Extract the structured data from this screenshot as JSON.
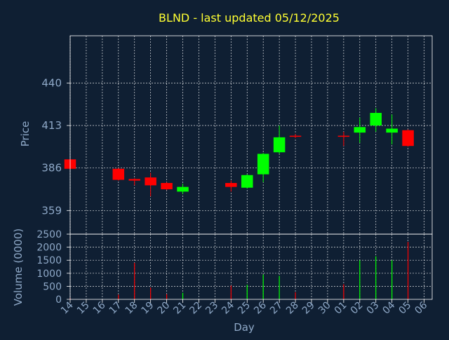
{
  "chart_data": {
    "type": "candlestick",
    "title": "BLND - last updated 05/12/2025",
    "xlabel": "Day",
    "ylabel": "Price",
    "volume_label": "Volume (0000)",
    "grid": true,
    "x_ticks": [
      "14",
      "15",
      "16",
      "17",
      "18",
      "19",
      "20",
      "21",
      "22",
      "23",
      "24",
      "25",
      "26",
      "27",
      "28",
      "29",
      "30",
      "01",
      "02",
      "03",
      "04",
      "05",
      "06"
    ],
    "y_ticks": [
      359,
      386,
      413,
      440
    ],
    "ylim": [
      344,
      470
    ],
    "volume_ticks": [
      0,
      500,
      1000,
      1500,
      2000,
      2500
    ],
    "volume_ylim": [
      0,
      2500
    ],
    "up_color": "#00ff00",
    "down_color": "#ff0000",
    "candles": [
      {
        "day": "14",
        "open": 391.5,
        "close": 385.5,
        "high": 392,
        "low": 385,
        "volume": 50,
        "up": false
      },
      {
        "day": "17",
        "open": 385.5,
        "close": 378.5,
        "high": 386,
        "low": 378,
        "volume": 180,
        "up": false
      },
      {
        "day": "18",
        "open": 379,
        "close": 378,
        "high": 379.5,
        "low": 375,
        "volume": 1400,
        "up": false
      },
      {
        "day": "19",
        "open": 380,
        "close": 375,
        "high": 383,
        "low": 368,
        "volume": 450,
        "up": false
      },
      {
        "day": "20",
        "open": 376.5,
        "close": 372.5,
        "high": 377,
        "low": 372,
        "volume": 200,
        "up": false
      },
      {
        "day": "21",
        "open": 371,
        "close": 374,
        "high": 376,
        "low": 369.5,
        "volume": 250,
        "up": true
      },
      {
        "day": "24",
        "open": 376.5,
        "close": 374,
        "high": 378,
        "low": 371,
        "volume": 530,
        "up": false
      },
      {
        "day": "25",
        "open": 373.5,
        "close": 381.5,
        "high": 382,
        "low": 373,
        "volume": 560,
        "up": true
      },
      {
        "day": "26",
        "open": 382,
        "close": 395,
        "high": 395.5,
        "low": 377,
        "volume": 950,
        "up": true
      },
      {
        "day": "27",
        "open": 396,
        "close": 405.5,
        "high": 413,
        "low": 395,
        "volume": 900,
        "up": true
      },
      {
        "day": "28",
        "open": 406.5,
        "close": 406,
        "high": 407.5,
        "low": 405,
        "volume": 270,
        "up": false
      },
      {
        "day": "01",
        "open": 406.5,
        "close": 406,
        "high": 409,
        "low": 400,
        "volume": 580,
        "up": false
      },
      {
        "day": "02",
        "open": 408.5,
        "close": 412,
        "high": 418,
        "low": 402,
        "volume": 1500,
        "up": true
      },
      {
        "day": "03",
        "open": 413,
        "close": 421,
        "high": 424,
        "low": 409,
        "volume": 1650,
        "up": true
      },
      {
        "day": "04",
        "open": 408.5,
        "close": 411,
        "high": 420,
        "low": 401,
        "volume": 1500,
        "up": true
      },
      {
        "day": "05",
        "open": 410,
        "close": 400,
        "high": 410.5,
        "low": 399.5,
        "volume": 2200,
        "up": false
      }
    ]
  }
}
